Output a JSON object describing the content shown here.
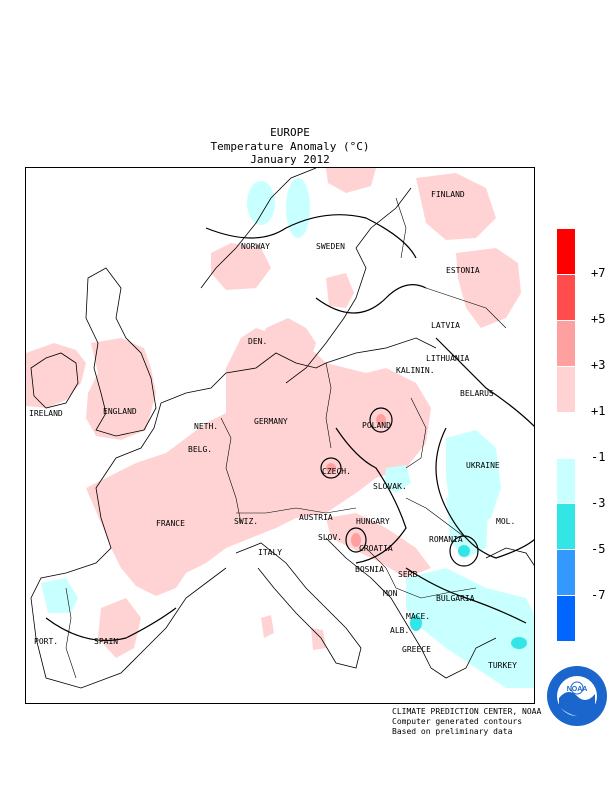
{
  "header": {
    "region": "EUROPE",
    "variable": "Temperature Anomaly (°C)",
    "period": "January 2012"
  },
  "map": {
    "countries": {
      "finland": "FINLAND",
      "norway": "NORWAY",
      "sweden": "SWEDEN",
      "estonia": "ESTONIA",
      "latvia": "LATVIA",
      "den": "DEN.",
      "lithuania": "LITHUANIA",
      "kalinin": "KALININ.",
      "ireland": "IRELAND",
      "england": "ENGLAND",
      "belarus": "BELARUS",
      "neth": "NETH.",
      "germany": "GERMANY",
      "poland": "POLAND",
      "belg": "BELG.",
      "czech": "CZECH.",
      "ukraine": "UKRAINE",
      "slovak": "SLOVAK.",
      "mol": "MOL.",
      "france": "FRANCE",
      "switz": "SWIZ.",
      "austria": "AUSTRIA",
      "hungary": "HUNGARY",
      "romania": "ROMANIA",
      "slov": "SLOV.",
      "croatia": "CROATIA",
      "italy": "ITALY",
      "bosnia": "BOSNIA",
      "serb": "SERB.",
      "bulgaria": "BULGARIA",
      "mon": "MON",
      "mace": "MACE.",
      "alb": "ALB.",
      "port": "PORT.",
      "spain": "SPAIN",
      "greece": "GREECE",
      "turkey": "TURKEY"
    }
  },
  "legend": {
    "unit": "°C",
    "labels": [
      "+7",
      "+5",
      "+3",
      "+1",
      "-1",
      "-3",
      "-5",
      "-7"
    ],
    "bins": [
      {
        "range": "> +7",
        "color": "#ff0000"
      },
      {
        "range": "+5 to +7",
        "color": "#ff4d4d"
      },
      {
        "range": "+3 to +5",
        "color": "#ffa0a0"
      },
      {
        "range": "+1 to +3",
        "color": "#ffd3d3"
      },
      {
        "range": "-1 to +1",
        "color": "#ffffff"
      },
      {
        "range": "-3 to -1",
        "color": "#c8ffff"
      },
      {
        "range": "-5 to -3",
        "color": "#33e6e6"
      },
      {
        "range": "-7 to -5",
        "color": "#3399ff"
      },
      {
        "range": "< -7",
        "color": "#0066ff"
      }
    ]
  },
  "credits": {
    "line1": "CLIMATE PREDICTION CENTER, NOAA",
    "line2": "Computer generated contours",
    "line3": "Based on preliminary data"
  },
  "logo": {
    "text": "NOAA",
    "ring_text": "NATIONAL OCEANIC AND ATMOSPHERIC ADMINISTRATION · U.S. DEPARTMENT OF COMMERCE",
    "ring_color": "#1a66cc"
  },
  "colors": {
    "warm_light": "#ffd3d3",
    "warm_mid": "#ffa0a0",
    "cold_light": "#c8ffff",
    "cold_mid": "#33e6e6",
    "cold_dark": "#3399ff"
  }
}
